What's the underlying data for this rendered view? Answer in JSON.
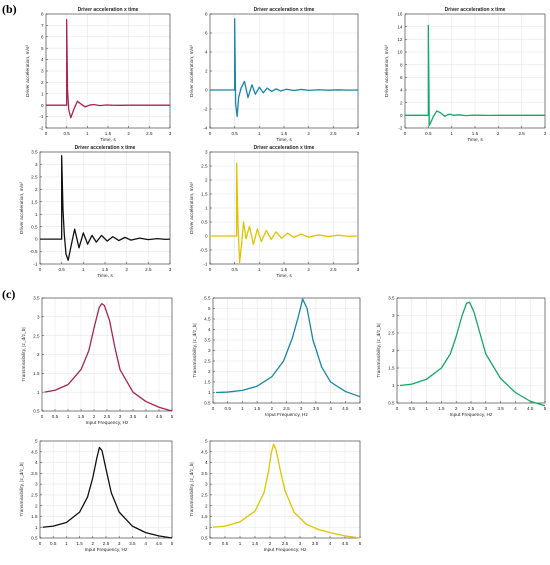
{
  "panel_labels": {
    "b": "(b)",
    "c": "(c)"
  },
  "chart_data": [
    {
      "type": "line",
      "group": "b",
      "title": "Driver acceleration x time",
      "xlabel": "Time, s",
      "ylabel": "Driver acceleration, m/s²",
      "xlim": [
        0,
        3
      ],
      "ylim": [
        -2,
        8
      ],
      "xticks": [
        0,
        0.5,
        1,
        1.5,
        2,
        2.5,
        3
      ],
      "xtick_labels": [
        "0",
        "0.5",
        "1",
        "1.5",
        "2",
        "2.5",
        "3"
      ],
      "yticks": [
        -2,
        -1,
        0,
        1,
        2,
        3,
        4,
        5,
        6,
        7,
        8
      ],
      "ytick_labels": [
        "-2",
        "-1",
        "0",
        "1",
        "2",
        "3",
        "4",
        "5",
        "6",
        "7",
        "8"
      ],
      "grid": true,
      "color": "#a8244f",
      "x": [
        0,
        0.5,
        0.5,
        0.52,
        0.55,
        0.6,
        0.68,
        0.76,
        0.85,
        0.95,
        1.05,
        1.15,
        1.3,
        1.45,
        1.6,
        1.8,
        2.0,
        2.5,
        3.0
      ],
      "y": [
        0,
        0,
        7.5,
        1.4,
        -0.4,
        -1.1,
        -0.3,
        0.35,
        0.1,
        -0.15,
        0,
        0.06,
        -0.04,
        0.02,
        0,
        -0.01,
        0,
        0,
        0
      ]
    },
    {
      "type": "line",
      "group": "b",
      "title": "Driver acceleration x time",
      "xlabel": "Time, s",
      "ylabel": "Driver acceleration, m/s²",
      "xlim": [
        0,
        3
      ],
      "ylim": [
        -4,
        8
      ],
      "xticks": [
        0,
        0.5,
        1,
        1.5,
        2,
        2.5,
        3
      ],
      "xtick_labels": [
        "0",
        "0.5",
        "1",
        "1.5",
        "2",
        "2.5",
        "3"
      ],
      "yticks": [
        -4,
        -2,
        0,
        2,
        4,
        6,
        8
      ],
      "ytick_labels": [
        "-4",
        "-2",
        "0",
        "2",
        "4",
        "6",
        "8"
      ],
      "grid": true,
      "color": "#1a85a8",
      "x": [
        0,
        0.5,
        0.5,
        0.52,
        0.55,
        0.58,
        0.63,
        0.7,
        0.77,
        0.85,
        0.92,
        1.0,
        1.08,
        1.16,
        1.25,
        1.34,
        1.43,
        1.55,
        1.7,
        1.85,
        2.0,
        2.2,
        2.4,
        2.6,
        2.8,
        3.0
      ],
      "y": [
        0,
        0,
        7.5,
        -1.5,
        -2.8,
        -0.8,
        0.2,
        0.9,
        -0.8,
        0.55,
        -0.45,
        0.3,
        -0.3,
        0.2,
        -0.15,
        0.12,
        -0.1,
        0.08,
        -0.05,
        0.06,
        -0.04,
        0.03,
        -0.02,
        0.02,
        -0.01,
        0
      ]
    },
    {
      "type": "line",
      "group": "b",
      "title": "Driver acceleration x time",
      "xlabel": "Time, s",
      "ylabel": "Driver acceleration, m/s²",
      "xlim": [
        0,
        3
      ],
      "ylim": [
        -2,
        16
      ],
      "xticks": [
        0,
        0.5,
        1,
        1.5,
        2,
        2.5,
        3
      ],
      "xtick_labels": [
        "0",
        "0.5",
        "1",
        "1.5",
        "2",
        "2.5",
        "3"
      ],
      "yticks": [
        -2,
        0,
        2,
        4,
        6,
        8,
        10,
        12,
        14,
        16
      ],
      "ytick_labels": [
        "-2",
        "0",
        "2",
        "4",
        "6",
        "8",
        "10",
        "12",
        "14",
        "16"
      ],
      "grid": true,
      "color": "#12a866",
      "x": [
        0,
        0.5,
        0.5,
        0.52,
        0.56,
        0.6,
        0.68,
        0.76,
        0.85,
        0.95,
        1.05,
        1.15,
        1.3,
        1.45,
        1.6,
        1.8,
        2.0,
        2.5,
        3.0
      ],
      "y": [
        0,
        0,
        14.2,
        -1.6,
        -1.0,
        -0.3,
        0.7,
        0.4,
        -0.15,
        0.2,
        0,
        0.08,
        -0.04,
        0.03,
        0,
        -0.01,
        0,
        0,
        0
      ]
    },
    {
      "type": "line",
      "group": "b",
      "title": "Driver acceleration x time",
      "xlabel": "Time, s",
      "ylabel": "Driver acceleration, m/s²",
      "xlim": [
        0,
        3
      ],
      "ylim": [
        -1,
        3.5
      ],
      "xticks": [
        0,
        0.5,
        1,
        1.5,
        2,
        2.5,
        3
      ],
      "xtick_labels": [
        "0",
        "0.5",
        "1",
        "1.5",
        "2",
        "2.5",
        "3"
      ],
      "yticks": [
        -1,
        -0.5,
        0,
        0.5,
        1,
        1.5,
        2,
        2.5,
        3,
        3.5
      ],
      "ytick_labels": [
        "-1",
        "-0.5",
        "0",
        "0.5",
        "1",
        "1.5",
        "2",
        "2.5",
        "3",
        "3.5"
      ],
      "grid": true,
      "color": "#111111",
      "x": [
        0,
        0.45,
        0.5,
        0.5,
        0.53,
        0.56,
        0.6,
        0.65,
        0.72,
        0.8,
        0.9,
        1.0,
        1.1,
        1.2,
        1.3,
        1.42,
        1.55,
        1.68,
        1.82,
        1.96,
        2.1,
        2.3,
        2.5,
        2.7,
        2.9,
        3.0
      ],
      "y": [
        0,
        0,
        0,
        3.35,
        1.2,
        0.2,
        -0.6,
        -0.85,
        -0.25,
        0.4,
        -0.35,
        0.25,
        -0.2,
        0.15,
        -0.12,
        0.15,
        -0.08,
        0.1,
        -0.06,
        0.07,
        -0.04,
        0.04,
        -0.02,
        0.02,
        -0.01,
        0
      ]
    },
    {
      "type": "line",
      "group": "b",
      "title": "Driver acceleration x time",
      "xlabel": "Time, s",
      "ylabel": "Driver acceleration, m/s²",
      "xlim": [
        0,
        3
      ],
      "ylim": [
        -1,
        3
      ],
      "xticks": [
        0,
        0.5,
        1,
        1.5,
        2,
        2.5,
        3
      ],
      "xtick_labels": [
        "0",
        "0.5",
        "1",
        "1.5",
        "2",
        "2.5",
        "3"
      ],
      "yticks": [
        -1,
        -0.5,
        0,
        0.5,
        1,
        1.5,
        2,
        2.5,
        3
      ],
      "ytick_labels": [
        "-1",
        "-0.5",
        "0",
        "0.5",
        "1",
        "1.5",
        "2",
        "2.5",
        "3"
      ],
      "grid": true,
      "color": "#e0c400",
      "x": [
        0,
        0.5,
        0.54,
        0.54,
        0.57,
        0.6,
        0.64,
        0.68,
        0.73,
        0.8,
        0.88,
        0.96,
        1.04,
        1.14,
        1.24,
        1.34,
        1.45,
        1.57,
        1.7,
        1.85,
        2.0,
        2.2,
        2.4,
        2.6,
        2.8,
        3.0
      ],
      "y": [
        0,
        0,
        0,
        2.6,
        0.3,
        -0.95,
        -0.3,
        0.5,
        -0.1,
        0.35,
        -0.3,
        0.25,
        -0.2,
        0.2,
        -0.12,
        0.15,
        -0.08,
        0.1,
        -0.05,
        0.07,
        -0.04,
        0.04,
        -0.02,
        0.03,
        -0.01,
        0
      ]
    },
    {
      "type": "line",
      "group": "c",
      "title": "",
      "xlabel": "Input Frequency, Hz",
      "ylabel": "Transmissibility, |z_d/z_b|",
      "xlim": [
        0,
        5
      ],
      "ylim": [
        0.5,
        3.5
      ],
      "xticks": [
        0,
        0.5,
        1,
        1.5,
        2,
        2.5,
        3,
        3.5,
        4,
        4.5,
        5
      ],
      "xtick_labels": [
        "0",
        "0.5",
        "1",
        "1.5",
        "2",
        "2.5",
        "3",
        "3.5",
        "4",
        "4.5",
        "5"
      ],
      "yticks": [
        0.5,
        1,
        1.5,
        2,
        2.5,
        3,
        3.5
      ],
      "ytick_labels": [
        "0.5",
        "1",
        "1.5",
        "2",
        "2.5",
        "3",
        "3.5"
      ],
      "grid": true,
      "color": "#a8244f",
      "x": [
        0.1,
        0.5,
        1.0,
        1.5,
        1.8,
        2.0,
        2.2,
        2.3,
        2.4,
        2.6,
        2.8,
        3.0,
        3.5,
        4.0,
        4.5,
        5.0
      ],
      "y": [
        1.0,
        1.05,
        1.2,
        1.6,
        2.1,
        2.7,
        3.25,
        3.35,
        3.3,
        2.9,
        2.2,
        1.6,
        1.0,
        0.75,
        0.6,
        0.5
      ]
    },
    {
      "type": "line",
      "group": "c",
      "title": "",
      "xlabel": "Input Frequency, Hz",
      "ylabel": "Transmissibility, |z_d/z_b|",
      "xlim": [
        0,
        5
      ],
      "ylim": [
        0.5,
        5.5
      ],
      "xticks": [
        0,
        0.5,
        1,
        1.5,
        2,
        2.5,
        3,
        3.5,
        4,
        4.5,
        5
      ],
      "xtick_labels": [
        "0",
        "0.5",
        "1",
        "1.5",
        "2",
        "2.5",
        "3",
        "3.5",
        "4",
        "4.5",
        "5"
      ],
      "yticks": [
        0.5,
        1,
        1.5,
        2,
        2.5,
        3,
        3.5,
        4,
        4.5,
        5,
        5.5
      ],
      "ytick_labels": [
        "0.5",
        "1",
        "1.5",
        "2",
        "2.5",
        "3",
        "3.5",
        "4",
        "4.5",
        "5",
        "5.5"
      ],
      "grid": true,
      "color": "#1a85a8",
      "x": [
        0.1,
        0.5,
        1.0,
        1.5,
        2.0,
        2.4,
        2.7,
        2.9,
        3.05,
        3.2,
        3.4,
        3.7,
        4.0,
        4.5,
        5.0
      ],
      "y": [
        1.0,
        1.02,
        1.1,
        1.3,
        1.75,
        2.5,
        3.6,
        4.6,
        5.45,
        5.0,
        3.5,
        2.2,
        1.5,
        1.05,
        0.8
      ]
    },
    {
      "type": "line",
      "group": "c",
      "title": "",
      "xlabel": "Input Frequency, Hz",
      "ylabel": "Transmissibility, |z_d/z_b|",
      "xlim": [
        0,
        5
      ],
      "ylim": [
        0.5,
        3.5
      ],
      "xticks": [
        0,
        0.5,
        1,
        1.5,
        2,
        2.5,
        3,
        3.5,
        4,
        4.5,
        5
      ],
      "xtick_labels": [
        "0",
        "0.5",
        "1",
        "1.5",
        "2",
        "2.5",
        "3",
        "3.5",
        "4",
        "4.5",
        "5"
      ],
      "yticks": [
        0.5,
        1,
        1.5,
        2,
        2.5,
        3,
        3.5
      ],
      "ytick_labels": [
        "0.5",
        "1",
        "1.5",
        "2",
        "2.5",
        "3",
        "3.5"
      ],
      "grid": true,
      "color": "#12a866",
      "x": [
        0.1,
        0.5,
        1.0,
        1.5,
        1.8,
        2.0,
        2.2,
        2.35,
        2.45,
        2.6,
        2.8,
        3.0,
        3.5,
        4.0,
        4.5,
        5.0
      ],
      "y": [
        1.0,
        1.04,
        1.18,
        1.5,
        1.9,
        2.4,
        3.0,
        3.35,
        3.38,
        3.1,
        2.5,
        1.9,
        1.2,
        0.8,
        0.55,
        0.42
      ]
    },
    {
      "type": "line",
      "group": "c",
      "title": "",
      "xlabel": "Input Frequency, Hz",
      "ylabel": "Transmissibility, |z_d/z_b|",
      "xlim": [
        0,
        5
      ],
      "ylim": [
        0.5,
        5
      ],
      "xticks": [
        0,
        0.5,
        1,
        1.5,
        2,
        2.5,
        3,
        3.5,
        4,
        4.5,
        5
      ],
      "xtick_labels": [
        "0",
        "0.5",
        "1",
        "1.5",
        "2",
        "2.5",
        "3",
        "3.5",
        "4",
        "4.5",
        "5"
      ],
      "yticks": [
        0.5,
        1,
        1.5,
        2,
        2.5,
        3,
        3.5,
        4,
        4.5,
        5
      ],
      "ytick_labels": [
        "0.5",
        "1",
        "1.5",
        "2",
        "2.5",
        "3",
        "3.5",
        "4",
        "4.5",
        "5"
      ],
      "grid": true,
      "color": "#111111",
      "x": [
        0.1,
        0.5,
        1.0,
        1.5,
        1.8,
        2.0,
        2.15,
        2.25,
        2.35,
        2.5,
        2.7,
        3.0,
        3.5,
        4.0,
        4.5,
        5.0
      ],
      "y": [
        1.0,
        1.05,
        1.22,
        1.7,
        2.4,
        3.3,
        4.2,
        4.7,
        4.55,
        3.7,
        2.6,
        1.7,
        1.05,
        0.75,
        0.6,
        0.5
      ]
    },
    {
      "type": "line",
      "group": "c",
      "title": "",
      "xlabel": "Input Frequency, Hz",
      "ylabel": "Transmissibility, |z_d/z_b|",
      "xlim": [
        0,
        5
      ],
      "ylim": [
        0.5,
        5
      ],
      "xticks": [
        0,
        0.5,
        1,
        1.5,
        2,
        2.5,
        3,
        3.5,
        4,
        4.5,
        5
      ],
      "xtick_labels": [
        "0",
        "0.5",
        "1",
        "1.5",
        "2",
        "2.5",
        "3",
        "3.5",
        "4",
        "4.5",
        "5"
      ],
      "yticks": [
        0.5,
        1,
        1.5,
        2,
        2.5,
        3,
        3.5,
        4,
        4.5,
        5
      ],
      "ytick_labels": [
        "0.5",
        "1",
        "1.5",
        "2",
        "2.5",
        "3",
        "3.5",
        "4",
        "4.5",
        "5"
      ],
      "grid": true,
      "color": "#e0c400",
      "x": [
        0.1,
        0.5,
        1.0,
        1.5,
        1.8,
        1.95,
        2.05,
        2.12,
        2.2,
        2.35,
        2.5,
        2.8,
        3.2,
        3.6,
        4.0,
        4.5,
        5.0
      ],
      "y": [
        1.0,
        1.05,
        1.25,
        1.75,
        2.6,
        3.6,
        4.5,
        4.85,
        4.6,
        3.6,
        2.7,
        1.7,
        1.15,
        0.9,
        0.75,
        0.6,
        0.5
      ]
    }
  ]
}
